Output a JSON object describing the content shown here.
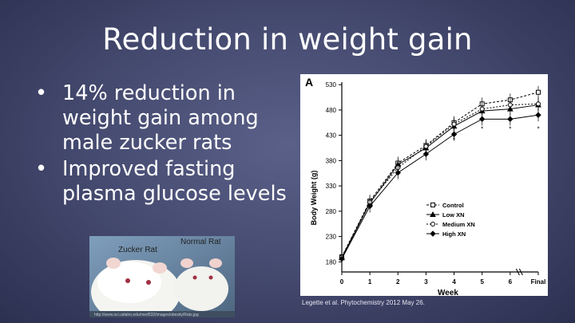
{
  "slide": {
    "title": "Reduction in weight gain",
    "bullets": [
      "14% reduction in weight gain among male zucker rats",
      "Improved fasting plasma glucose levels"
    ],
    "bullet_symbol": "•",
    "photo": {
      "label_left": "Zucker Rat",
      "label_right": "Normal Rat",
      "credit": "http://www.sci.uidaho.edu/med532/images/obesity/Rats.jpg"
    },
    "citation": "Legette et al. Phytochemistry 2012 May 26."
  },
  "chart_data": {
    "type": "line",
    "panel_label": "A",
    "xlabel": "Week",
    "ylabel": "Body Weight (g)",
    "x_ticks": [
      "0",
      "1",
      "2",
      "3",
      "4",
      "5",
      "6",
      "Final"
    ],
    "y_ticks": [
      180,
      230,
      280,
      330,
      380,
      430,
      480,
      530
    ],
    "ylim": [
      160,
      535
    ],
    "x": [
      0,
      1,
      2,
      3,
      4,
      5,
      6,
      6.6
    ],
    "series": [
      {
        "name": "Control",
        "marker": "square",
        "values": [
          190,
          300,
          375,
          410,
          455,
          492,
          500,
          515
        ]
      },
      {
        "name": "Low XN",
        "marker": "triangle",
        "values": [
          188,
          296,
          372,
          405,
          448,
          478,
          482,
          490
        ]
      },
      {
        "name": "Medium XN",
        "marker": "circle",
        "values": [
          189,
          298,
          366,
          408,
          452,
          482,
          490,
          492
        ]
      },
      {
        "name": "High XN",
        "marker": "diamond",
        "values": [
          186,
          290,
          356,
          393,
          432,
          462,
          462,
          470
        ]
      }
    ],
    "significance_marks": [
      "*",
      "*",
      "*",
      "*"
    ],
    "legend_position": "lower-right"
  }
}
